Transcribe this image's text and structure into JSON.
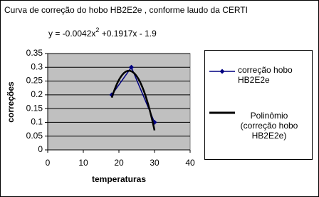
{
  "chart_data": {
    "type": "line",
    "title": "Curva de correção do hobo HB2E2e , conforme laudo da CERTI",
    "equation": [
      "y = -0.0042x",
      "2",
      " +0.1917x - 1.9"
    ],
    "x_label": "temperaturas",
    "y_label": "correções",
    "series": [
      {
        "name": "correção hobo HB2E2e",
        "color": "#000080",
        "x": [
          18,
          23.5,
          30
        ],
        "values": [
          0.2,
          0.3,
          0.1
        ]
      }
    ],
    "trendline": {
      "name": "Polinômio (correção hobo HB2E2e)",
      "color": "#000000",
      "coefficients": [
        -0.0042,
        0.1917,
        -1.9
      ]
    },
    "xlim": [
      0,
      40
    ],
    "xticks": [
      0,
      10,
      20,
      30,
      40
    ],
    "ylim": [
      0,
      0.35
    ],
    "yticks": [
      0,
      0.05,
      0.1,
      0.15,
      0.2,
      0.25,
      0.3,
      0.35
    ],
    "grid": true
  }
}
